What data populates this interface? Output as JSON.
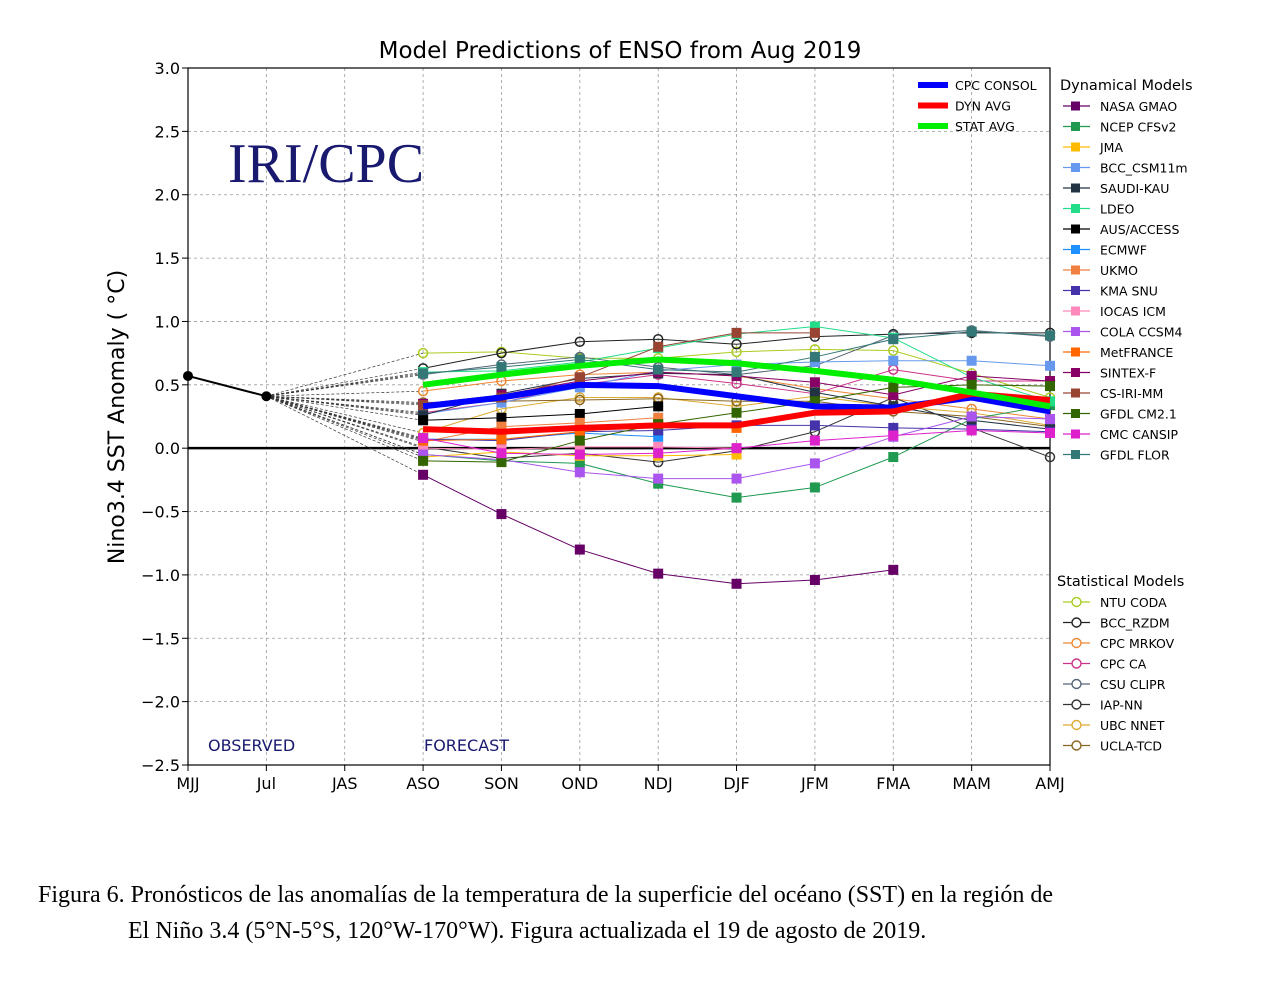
{
  "chart_data": {
    "type": "line",
    "title": "Model Predictions of ENSO from Aug 2019",
    "ylabel": "Nino3.4 SST Anomaly ( °C)",
    "xlabel": "",
    "watermark": "IRI/CPC",
    "observed_label": "OBSERVED",
    "forecast_label": "FORECAST",
    "categories": [
      "MJJ",
      "Jul",
      "JAS",
      "ASO",
      "SON",
      "OND",
      "NDJ",
      "DJF",
      "JFM",
      "FMA",
      "MAM",
      "AMJ"
    ],
    "ylim": [
      -2.5,
      3.0
    ],
    "yticks": [
      "3.0",
      "2.5",
      "2.0",
      "1.5",
      "1.0",
      "0.5",
      "0.0",
      "−0.5",
      "−1.0",
      "−1.5",
      "−2.0",
      "−2.5"
    ],
    "grid": true,
    "observed": {
      "color": "#000000",
      "values": [
        0.57,
        0.41,
        null,
        null,
        null,
        null,
        null,
        null,
        null,
        null,
        null,
        null
      ]
    },
    "summary_legend_position": "top-right inside plot",
    "summary_series": [
      {
        "name": "CPC CONSOL",
        "color": "#0000ff",
        "values": [
          null,
          null,
          null,
          0.33,
          0.4,
          0.5,
          0.49,
          0.41,
          0.33,
          0.32,
          0.4,
          0.29
        ]
      },
      {
        "name": "DYN AVG",
        "color": "#ff0000",
        "values": [
          null,
          null,
          null,
          0.15,
          0.13,
          0.16,
          0.18,
          0.18,
          0.28,
          0.29,
          0.43,
          0.38
        ]
      },
      {
        "name": "STAT AVG",
        "color": "#00ee00",
        "values": [
          null,
          null,
          null,
          0.5,
          0.58,
          0.65,
          0.7,
          0.67,
          0.61,
          0.54,
          0.44,
          0.33
        ]
      }
    ],
    "dynamical_title": "Dynamical Models",
    "dynamical_series": [
      {
        "name": "NASA GMAO",
        "color": "#660066",
        "values": [
          null,
          null,
          null,
          -0.21,
          -0.52,
          -0.8,
          -0.99,
          -1.07,
          -1.04,
          -0.96,
          null,
          null
        ]
      },
      {
        "name": "NCEP CFSv2",
        "color": "#1f9a50",
        "values": [
          null,
          null,
          null,
          -0.05,
          -0.1,
          -0.12,
          -0.28,
          -0.39,
          -0.31,
          -0.07,
          0.23,
          0.34
        ]
      },
      {
        "name": "JMA",
        "color": "#ffbb00",
        "values": [
          null,
          null,
          null,
          -0.07,
          -0.03,
          -0.06,
          -0.06,
          -0.05,
          null,
          null,
          null,
          null
        ]
      },
      {
        "name": "BCC_CSM11m",
        "color": "#6699ee",
        "values": [
          null,
          null,
          null,
          0.27,
          0.36,
          0.48,
          0.61,
          0.66,
          0.68,
          0.69,
          0.69,
          0.65
        ]
      },
      {
        "name": "SAUDI-KAU",
        "color": "#223344",
        "values": [
          null,
          null,
          null,
          0.26,
          0.43,
          0.55,
          0.59,
          0.58,
          0.44,
          0.33,
          0.22,
          0.15
        ]
      },
      {
        "name": "LDEO",
        "color": "#22dd88",
        "values": [
          null,
          null,
          null,
          0.6,
          0.61,
          0.68,
          0.79,
          0.9,
          0.96,
          0.87,
          0.56,
          0.37
        ]
      },
      {
        "name": "AUS/ACCESS",
        "color": "#000000",
        "values": [
          null,
          null,
          null,
          0.22,
          0.24,
          0.27,
          0.33,
          null,
          null,
          null,
          null,
          null
        ]
      },
      {
        "name": "ECMWF",
        "color": "#1e90ff",
        "values": [
          null,
          null,
          null,
          0.07,
          0.07,
          0.12,
          0.09,
          null,
          null,
          null,
          null,
          null
        ]
      },
      {
        "name": "UKMO",
        "color": "#f08040",
        "values": [
          null,
          null,
          null,
          0.05,
          0.17,
          0.2,
          0.24,
          null,
          null,
          null,
          null,
          null
        ]
      },
      {
        "name": "KMA SNU",
        "color": "#4433aa",
        "values": [
          null,
          null,
          null,
          0.07,
          0.06,
          0.13,
          0.14,
          0.18,
          0.18,
          0.16,
          0.15,
          0.13
        ]
      },
      {
        "name": "IOCAS ICM",
        "color": "#ff88bb",
        "values": [
          null,
          null,
          null,
          0.0,
          -0.01,
          0.01,
          0.01,
          0.0,
          null,
          null,
          null,
          null
        ]
      },
      {
        "name": "COLA CCSM4",
        "color": "#aa55ee",
        "values": [
          null,
          null,
          null,
          -0.05,
          -0.09,
          -0.19,
          -0.24,
          -0.24,
          -0.12,
          0.09,
          0.25,
          0.23
        ]
      },
      {
        "name": "MetFRANCE",
        "color": "#ff6600",
        "values": [
          null,
          null,
          null,
          0.06,
          0.07,
          0.13,
          0.19,
          0.16,
          null,
          null,
          null,
          null
        ]
      },
      {
        "name": "SINTEX-F",
        "color": "#880066",
        "values": [
          null,
          null,
          null,
          0.35,
          0.42,
          0.53,
          0.6,
          0.57,
          0.52,
          0.42,
          0.57,
          0.53
        ]
      },
      {
        "name": "CS-IRI-MM",
        "color": "#994433",
        "values": [
          null,
          null,
          null,
          0.34,
          0.4,
          0.56,
          0.8,
          0.91,
          0.91,
          null,
          null,
          null
        ]
      },
      {
        "name": "GFDL CM2.1",
        "color": "#336600",
        "values": [
          null,
          null,
          null,
          -0.1,
          -0.11,
          0.06,
          0.19,
          0.28,
          0.37,
          0.48,
          0.5,
          0.49
        ]
      },
      {
        "name": "CMC CANSIP",
        "color": "#dd22cc",
        "values": [
          null,
          null,
          null,
          0.08,
          -0.04,
          -0.05,
          -0.04,
          0.0,
          0.06,
          0.1,
          0.14,
          0.12
        ]
      },
      {
        "name": "GFDL FLOR",
        "color": "#337777",
        "values": [
          null,
          null,
          null,
          0.59,
          0.64,
          0.7,
          0.62,
          0.6,
          0.72,
          0.86,
          0.92,
          0.89
        ]
      }
    ],
    "statistical_title": "Statistical Models",
    "statistical_series": [
      {
        "name": "NTU CODA",
        "color": "#aacc22",
        "values": [
          null,
          null,
          null,
          0.75,
          0.76,
          0.71,
          0.71,
          0.76,
          0.78,
          0.77,
          0.59,
          0.4
        ]
      },
      {
        "name": "BCC_RZDM",
        "color": "#222222",
        "values": [
          null,
          null,
          null,
          0.63,
          0.75,
          0.84,
          0.86,
          0.82,
          0.88,
          0.9,
          0.91,
          0.91
        ]
      },
      {
        "name": "CPC MRKOV",
        "color": "#ee8833",
        "values": [
          null,
          null,
          null,
          0.45,
          0.53,
          0.58,
          0.6,
          0.57,
          0.47,
          0.39,
          0.31,
          0.23
        ]
      },
      {
        "name": "CPC CA",
        "color": "#cc3388",
        "values": [
          null,
          null,
          null,
          0.28,
          0.36,
          0.5,
          0.58,
          0.51,
          0.43,
          0.62,
          0.53,
          0.53
        ]
      },
      {
        "name": "CSU CLIPR",
        "color": "#556677",
        "values": [
          null,
          null,
          null,
          0.58,
          0.66,
          0.72,
          0.64,
          0.58,
          0.65,
          0.89,
          0.93,
          0.88
        ]
      },
      {
        "name": "IAP-NN",
        "color": "#333333",
        "values": [
          null,
          null,
          null,
          0.01,
          -0.08,
          -0.04,
          -0.11,
          -0.02,
          0.13,
          0.4,
          0.16,
          -0.07
        ]
      },
      {
        "name": "UBC NNET",
        "color": "#ddaa33",
        "values": [
          null,
          null,
          null,
          0.12,
          0.31,
          0.4,
          0.4,
          0.33,
          0.41,
          0.33,
          0.28,
          0.18
        ]
      },
      {
        "name": "UCLA-TCD",
        "color": "#886622",
        "values": [
          null,
          null,
          null,
          0.36,
          0.37,
          0.38,
          0.39,
          0.37,
          0.37,
          0.29,
          0.25,
          0.17
        ]
      }
    ]
  },
  "caption": {
    "line1": "Figura 6. Pronósticos de las anomalías de la temperatura de la superficie del océano (SST) en la región de",
    "line2": "El Niño 3.4 (5°N-5°S, 120°W-170°W). Figura actualizada el 19 de agosto de 2019."
  }
}
